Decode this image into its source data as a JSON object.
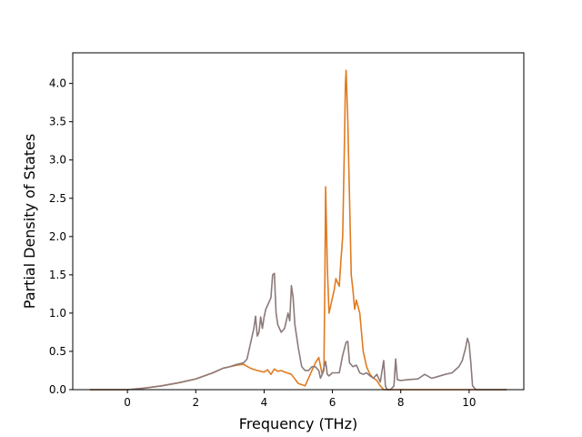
{
  "chart_data": {
    "type": "line",
    "xlabel": "Frequency (THz)",
    "ylabel": "Partial Density of States",
    "xlim": [
      -1.6,
      11.6
    ],
    "ylim": [
      0.0,
      4.4
    ],
    "xticks": [
      0,
      2,
      4,
      6,
      8,
      10
    ],
    "yticks": [
      0.0,
      0.5,
      1.0,
      1.5,
      2.0,
      2.5,
      3.0,
      3.5,
      4.0
    ],
    "xtick_labels": [
      "0",
      "2",
      "4",
      "6",
      "8",
      "10"
    ],
    "ytick_labels": [
      "0.0",
      "0.5",
      "1.0",
      "1.5",
      "2.0",
      "2.5",
      "3.0",
      "3.5",
      "4.0"
    ],
    "grid": false,
    "series": [
      {
        "color": "#e07b20",
        "x": [
          -1.1,
          0.0,
          0.5,
          1.0,
          1.5,
          2.0,
          2.5,
          2.8,
          3.0,
          3.2,
          3.4,
          3.6,
          3.8,
          4.0,
          4.1,
          4.2,
          4.3,
          4.4,
          4.5,
          4.6,
          4.8,
          5.0,
          5.2,
          5.4,
          5.5,
          5.6,
          5.7,
          5.75,
          5.78,
          5.8,
          5.85,
          5.9,
          6.0,
          6.05,
          6.1,
          6.2,
          6.25,
          6.3,
          6.35,
          6.38,
          6.4,
          6.45,
          6.5,
          6.55,
          6.6,
          6.65,
          6.7,
          6.8,
          6.9,
          7.0,
          7.1,
          7.2,
          7.3,
          7.4,
          7.5,
          7.55,
          7.6,
          7.7,
          7.8,
          7.85,
          7.9,
          8.0,
          8.5,
          9.0,
          9.5,
          10.0,
          10.5,
          11.1
        ],
        "y": [
          0.0,
          0.0,
          0.02,
          0.05,
          0.09,
          0.14,
          0.22,
          0.28,
          0.3,
          0.32,
          0.33,
          0.28,
          0.25,
          0.23,
          0.26,
          0.2,
          0.27,
          0.24,
          0.25,
          0.23,
          0.2,
          0.08,
          0.05,
          0.25,
          0.35,
          0.42,
          0.2,
          0.25,
          1.5,
          2.65,
          1.6,
          1.0,
          1.2,
          1.3,
          1.45,
          1.35,
          1.7,
          2.0,
          3.2,
          4.0,
          4.17,
          3.5,
          2.5,
          1.5,
          1.3,
          1.05,
          1.17,
          1.0,
          0.5,
          0.3,
          0.2,
          0.15,
          0.12,
          0.05,
          0.0,
          0.0,
          0.0,
          0.0,
          0.0,
          0.0,
          0.0,
          0.0,
          0.0,
          0.0,
          0.0,
          0.0,
          0.0,
          0.0
        ]
      },
      {
        "color": "#8c7a7a",
        "x": [
          -1.1,
          0.0,
          0.5,
          1.0,
          1.5,
          2.0,
          2.5,
          2.8,
          3.0,
          3.2,
          3.4,
          3.5,
          3.6,
          3.7,
          3.75,
          3.8,
          3.85,
          3.9,
          3.95,
          4.0,
          4.05,
          4.1,
          4.2,
          4.25,
          4.3,
          4.35,
          4.4,
          4.5,
          4.6,
          4.7,
          4.75,
          4.8,
          4.85,
          4.9,
          5.0,
          5.1,
          5.2,
          5.3,
          5.4,
          5.5,
          5.6,
          5.65,
          5.7,
          5.8,
          5.85,
          5.9,
          6.0,
          6.2,
          6.3,
          6.4,
          6.45,
          6.5,
          6.6,
          6.7,
          6.8,
          6.9,
          7.0,
          7.1,
          7.2,
          7.3,
          7.4,
          7.5,
          7.55,
          7.6,
          7.7,
          7.8,
          7.85,
          7.9,
          8.0,
          8.2,
          8.5,
          8.7,
          8.9,
          9.0,
          9.3,
          9.5,
          9.7,
          9.8,
          9.9,
          9.95,
          10.0,
          10.05,
          10.1,
          10.2,
          10.5,
          11.1
        ],
        "y": [
          0.0,
          0.0,
          0.02,
          0.05,
          0.09,
          0.14,
          0.22,
          0.28,
          0.3,
          0.33,
          0.35,
          0.4,
          0.6,
          0.8,
          0.96,
          0.7,
          0.75,
          0.95,
          0.8,
          0.95,
          1.05,
          1.1,
          1.2,
          1.5,
          1.52,
          1.0,
          0.85,
          0.75,
          0.8,
          1.0,
          0.9,
          1.36,
          1.2,
          0.85,
          0.55,
          0.3,
          0.25,
          0.25,
          0.3,
          0.3,
          0.25,
          0.15,
          0.2,
          0.37,
          0.2,
          0.18,
          0.22,
          0.22,
          0.45,
          0.62,
          0.63,
          0.35,
          0.3,
          0.32,
          0.22,
          0.2,
          0.22,
          0.18,
          0.15,
          0.2,
          0.1,
          0.38,
          0.05,
          0.0,
          0.0,
          0.05,
          0.4,
          0.13,
          0.12,
          0.13,
          0.14,
          0.2,
          0.15,
          0.16,
          0.2,
          0.22,
          0.3,
          0.38,
          0.55,
          0.67,
          0.6,
          0.35,
          0.05,
          0.0,
          0.0,
          0.0
        ]
      }
    ]
  }
}
